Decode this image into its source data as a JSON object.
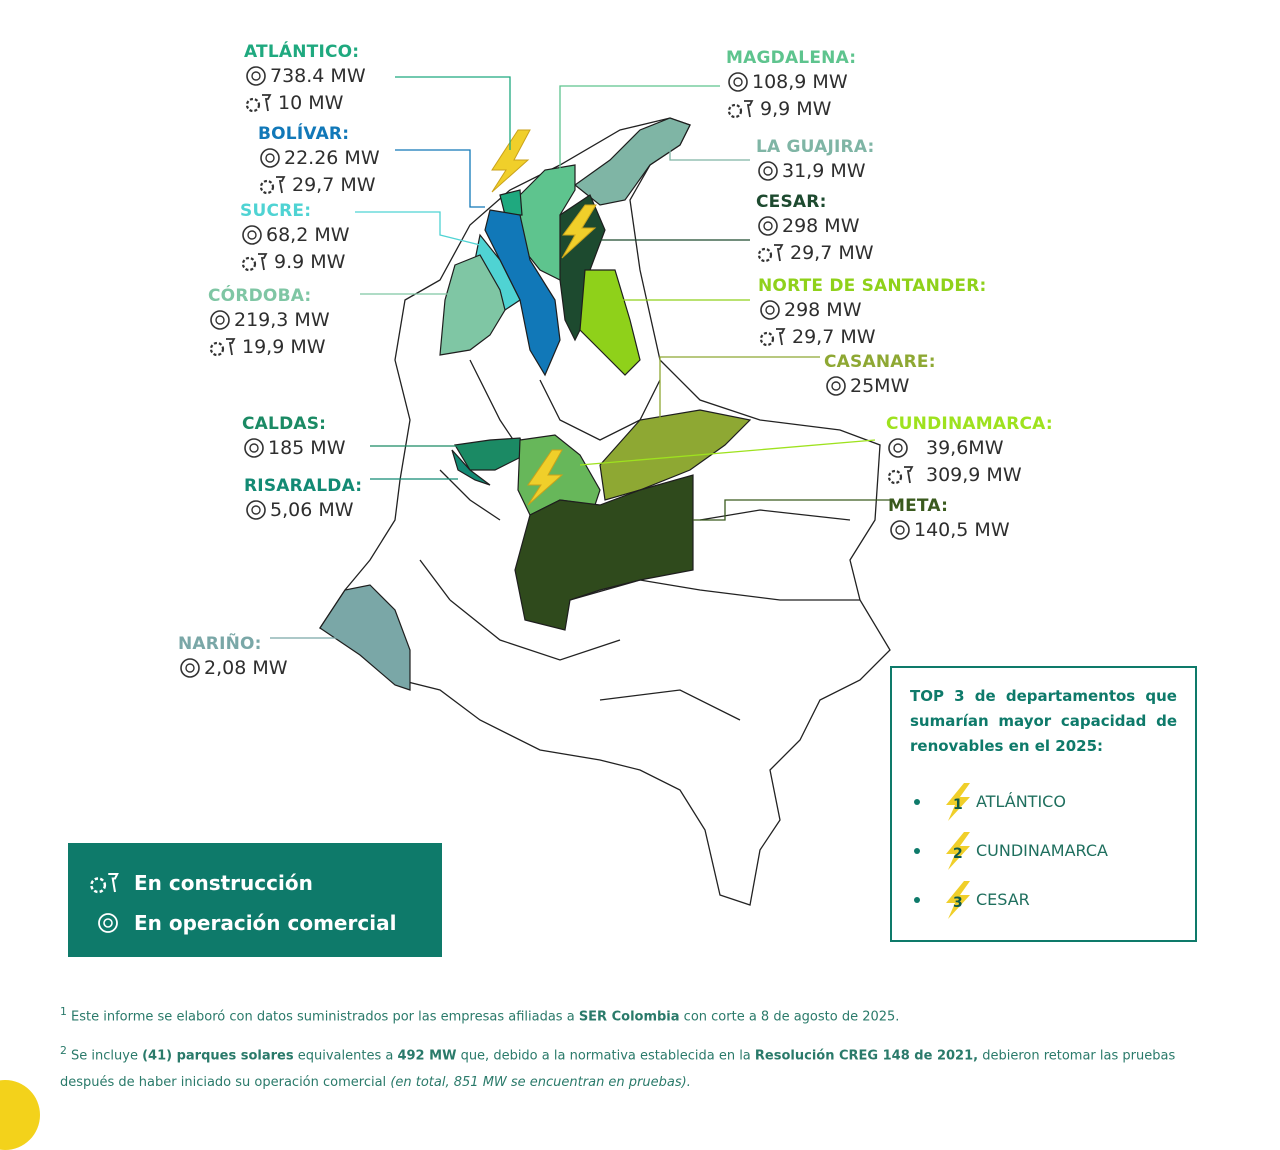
{
  "departments": {
    "atlantico": {
      "name": "ATLÁNTICO:",
      "operation": "738.4 MW",
      "construction": "10 MW",
      "color": "#1fa97f"
    },
    "bolivar": {
      "name": "BOLÍVAR:",
      "operation": "22.26 MW",
      "construction": "29,7 MW",
      "color": "#1178b8"
    },
    "sucre": {
      "name": "SUCRE:",
      "operation": "68,2 MW",
      "construction": "9.9 MW",
      "color": "#4fd3d3"
    },
    "cordoba": {
      "name": "CÓRDOBA:",
      "operation": "219,3 MW",
      "construction": "19,9 MW",
      "color": "#7fc6a4"
    },
    "caldas": {
      "name": "CALDAS:",
      "operation": "185 MW",
      "color": "#1b8a64"
    },
    "risaralda": {
      "name": "RISARALDA:",
      "operation": "5,06 MW",
      "color": "#138a74"
    },
    "narino": {
      "name": "NARIÑO:",
      "operation": "2,08 MW",
      "color": "#7aa7a7"
    },
    "magdalena": {
      "name": "MAGDALENA:",
      "operation": "108,9 MW",
      "construction": "9,9 MW",
      "color": "#5ec48e"
    },
    "la_guajira": {
      "name": "LA GUAJIRA:",
      "operation": "31,9 MW",
      "color": "#7fb5a5"
    },
    "cesar": {
      "name": "CESAR:",
      "operation": "298  MW",
      "construction": "29,7 MW",
      "color": "#1d4a2f"
    },
    "norte_santander": {
      "name": "NORTE DE SANTANDER:",
      "operation": "298  MW",
      "construction": "29,7 MW",
      "color": "#8fd11a"
    },
    "casanare": {
      "name": "CASANARE:",
      "operation": "25MW",
      "color": "#8ea833"
    },
    "cundinamarca": {
      "name": "CUNDINAMARCA:",
      "operation": "39,6MW",
      "construction": "309,9 MW",
      "color": "#9ee21e"
    },
    "meta": {
      "name": "META:",
      "operation": "140,5 MW",
      "color": "#3a5a1e"
    }
  },
  "legend": {
    "construction": "En construcción",
    "operation": "En operación comercial",
    "construction_icon": "gear-hammer-icon",
    "operation_icon": "solar-panel-icon"
  },
  "top3": {
    "intro_prefix": "TOP 3",
    "intro_text": "de departamentos que sumarían mayor capacidad de renovables en el 2025:",
    "items": [
      {
        "rank": "1",
        "name": "ATLÁNTICO"
      },
      {
        "rank": "2",
        "name": "CUNDINAMARCA"
      },
      {
        "rank": "3",
        "name": "CESAR"
      }
    ]
  },
  "footnotes": {
    "n1_mark": "1",
    "n1_a": "Este informe se elaboró con datos suministrados por las empresas afiliadas a",
    "n1_b": "SER Colombia",
    "n1_c": "con corte a 8 de agosto de 2025.",
    "n2_mark": "2",
    "n2_a": "Se incluye",
    "n2_b": "(41) parques solares",
    "n2_c": "equivalentes a",
    "n2_d": "492 MW",
    "n2_e": "que, debido a la normativa establecida en la",
    "n2_f": "Resolución CREG 148 de 2021,",
    "n2_g": "debieron retomar las pruebas después de haber iniciado su operación comercial",
    "n2_h": "(en total, 851 MW se encuentran en pruebas)."
  },
  "colors": {
    "accent": "#0e7a6a",
    "highlight": "#f3d21b",
    "map_outline": "#222222"
  }
}
